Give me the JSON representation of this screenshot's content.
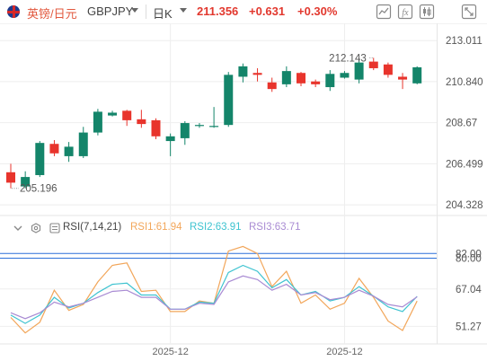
{
  "header": {
    "pair_name": "英镑/日元",
    "pair_code": "GBPJPY",
    "period": "日K",
    "price": "211.356",
    "change": "+0.631",
    "change_pct": "+0.30%"
  },
  "indicator": {
    "name": "RSI(7,14,21)",
    "rsi1": "RSI1:61.94",
    "rsi2": "RSI2:63.91",
    "rsi3": "RSI3:63.71"
  },
  "colors": {
    "up": "#e8342c",
    "down": "#14856a",
    "rsi1": "#f2a65a",
    "rsi2": "#3ec3d0",
    "rsi3": "#a98bd3",
    "level_line": "#2c6fd9",
    "grid": "#eeeeee"
  },
  "chart_data": [
    {
      "type": "candlestick",
      "y_ticks": [
        213.011,
        210.84,
        208.67,
        206.499,
        204.328
      ],
      "ylim": [
        204.0,
        213.4
      ],
      "x_ticks": [
        "2025-12",
        "2025-12"
      ],
      "annotations": {
        "high_label": "212.143",
        "low_label": "205.196"
      },
      "candles": [
        {
          "o": 206.05,
          "h": 206.5,
          "l": 205.2,
          "c": 205.5
        },
        {
          "o": 205.3,
          "h": 206.1,
          "l": 205.2,
          "c": 205.8
        },
        {
          "o": 205.9,
          "h": 207.7,
          "l": 205.8,
          "c": 207.6
        },
        {
          "o": 207.55,
          "h": 207.75,
          "l": 206.9,
          "c": 207.05
        },
        {
          "o": 206.9,
          "h": 207.65,
          "l": 206.6,
          "c": 207.4
        },
        {
          "o": 206.9,
          "h": 208.45,
          "l": 206.8,
          "c": 208.15
        },
        {
          "o": 208.15,
          "h": 209.4,
          "l": 208.0,
          "c": 209.25
        },
        {
          "o": 209.05,
          "h": 209.3,
          "l": 209.0,
          "c": 209.2
        },
        {
          "o": 209.3,
          "h": 209.35,
          "l": 208.5,
          "c": 208.8
        },
        {
          "o": 208.85,
          "h": 209.35,
          "l": 208.4,
          "c": 208.6
        },
        {
          "o": 208.8,
          "h": 208.9,
          "l": 207.8,
          "c": 207.95
        },
        {
          "o": 207.7,
          "h": 208.1,
          "l": 206.9,
          "c": 207.95
        },
        {
          "o": 207.85,
          "h": 208.75,
          "l": 207.5,
          "c": 208.65
        },
        {
          "o": 208.5,
          "h": 208.65,
          "l": 208.4,
          "c": 208.55
        },
        {
          "o": 208.5,
          "h": 209.5,
          "l": 208.4,
          "c": 208.5
        },
        {
          "o": 208.55,
          "h": 211.35,
          "l": 208.45,
          "c": 211.2
        },
        {
          "o": 211.1,
          "h": 211.8,
          "l": 210.8,
          "c": 211.65
        },
        {
          "o": 211.3,
          "h": 211.55,
          "l": 210.85,
          "c": 211.2
        },
        {
          "o": 210.8,
          "h": 211.05,
          "l": 210.3,
          "c": 210.45
        },
        {
          "o": 210.7,
          "h": 211.65,
          "l": 210.55,
          "c": 211.4
        },
        {
          "o": 211.3,
          "h": 211.35,
          "l": 210.6,
          "c": 210.75
        },
        {
          "o": 210.85,
          "h": 210.95,
          "l": 210.55,
          "c": 210.7
        },
        {
          "o": 210.55,
          "h": 211.45,
          "l": 210.35,
          "c": 211.25
        },
        {
          "o": 211.05,
          "h": 211.4,
          "l": 211.0,
          "c": 211.3
        },
        {
          "o": 210.95,
          "h": 212.0,
          "l": 210.75,
          "c": 211.85
        },
        {
          "o": 211.9,
          "h": 212.1,
          "l": 211.45,
          "c": 211.55
        },
        {
          "o": 211.75,
          "h": 211.85,
          "l": 211.05,
          "c": 211.2
        },
        {
          "o": 211.1,
          "h": 211.3,
          "l": 210.45,
          "c": 210.95
        },
        {
          "o": 210.75,
          "h": 211.65,
          "l": 210.7,
          "c": 211.6
        }
      ]
    },
    {
      "type": "line",
      "title": "RSI(7,14,21)",
      "y_ticks": [
        82.0,
        80.0,
        67.04,
        51.27
      ],
      "ylim": [
        48.0,
        84.0
      ],
      "series": [
        {
          "name": "RSI1",
          "values": [
            55.0,
            48.5,
            53.0,
            66.5,
            58.0,
            60.5,
            70.0,
            77.0,
            78.0,
            66.0,
            66.5,
            57.5,
            57.5,
            62.0,
            61.0,
            83.0,
            85.0,
            82.0,
            68.0,
            74.5,
            61.0,
            64.5,
            58.5,
            61.0,
            71.5,
            63.5,
            53.5,
            49.5,
            61.94
          ]
        },
        {
          "name": "RSI2",
          "values": [
            56.0,
            52.5,
            56.0,
            63.5,
            59.0,
            61.0,
            65.5,
            69.0,
            69.5,
            64.5,
            64.5,
            58.5,
            58.5,
            61.5,
            61.0,
            74.0,
            77.0,
            74.5,
            67.5,
            71.0,
            64.5,
            66.0,
            62.0,
            63.5,
            68.0,
            64.0,
            59.5,
            57.5,
            63.91
          ]
        },
        {
          "name": "RSI3",
          "values": [
            57.0,
            54.5,
            57.0,
            61.5,
            59.5,
            61.0,
            63.5,
            66.0,
            66.5,
            63.5,
            63.5,
            58.5,
            58.5,
            61.0,
            60.5,
            70.0,
            72.5,
            71.0,
            66.5,
            69.0,
            64.5,
            65.5,
            62.5,
            63.5,
            66.5,
            64.0,
            60.5,
            59.5,
            63.71
          ]
        }
      ],
      "levels": [
        82.0,
        80.0
      ]
    }
  ]
}
